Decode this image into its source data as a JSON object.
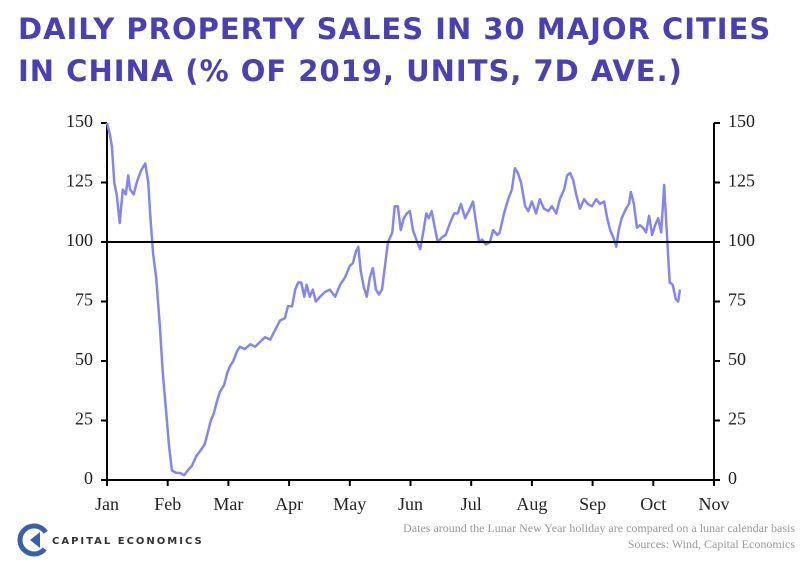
{
  "chart_data": {
    "type": "line",
    "title": "DAILY PROPERTY SALES IN 30 MAJOR CITIES IN CHINA (% OF 2019, UNITS, 7D AVE.)",
    "x": [
      0,
      0.05,
      0.08,
      0.12,
      0.16,
      0.21,
      0.26,
      0.31,
      0.35,
      0.38,
      0.44,
      0.49,
      0.56,
      0.63,
      0.68,
      0.71,
      0.76,
      0.81,
      0.87,
      0.92,
      0.97,
      1.02,
      1.07,
      1.14,
      1.2,
      1.27,
      1.33,
      1.4,
      1.47,
      1.53,
      1.61,
      1.66,
      1.71,
      1.76,
      1.81,
      1.86,
      1.93,
      1.98,
      2.03,
      2.08,
      2.14,
      2.19,
      2.27,
      2.36,
      2.44,
      2.52,
      2.6,
      2.69,
      2.77,
      2.85,
      2.93,
      2.98,
      3.05,
      3.1,
      3.15,
      3.2,
      3.25,
      3.29,
      3.34,
      3.39,
      3.44,
      3.51,
      3.59,
      3.67,
      3.76,
      3.84,
      3.92,
      4.0,
      4.05,
      4.1,
      4.14,
      4.18,
      4.23,
      4.28,
      4.33,
      4.38,
      4.43,
      4.48,
      4.53,
      4.58,
      4.63,
      4.7,
      4.74,
      4.79,
      4.84,
      4.89,
      4.94,
      4.99,
      5.04,
      5.11,
      5.16,
      5.21,
      5.26,
      5.3,
      5.35,
      5.4,
      5.45,
      5.52,
      5.58,
      5.65,
      5.72,
      5.78,
      5.83,
      5.9,
      5.96,
      6.03,
      6.08,
      6.13,
      6.18,
      6.24,
      6.31,
      6.36,
      6.43,
      6.47,
      6.54,
      6.61,
      6.67,
      6.72,
      6.77,
      6.82,
      6.89,
      6.94,
      7.0,
      7.07,
      7.13,
      7.2,
      7.27,
      7.33,
      7.4,
      7.46,
      7.53,
      7.58,
      7.63,
      7.68,
      7.73,
      7.79,
      7.86,
      7.92,
      7.99,
      8.06,
      8.12,
      8.19,
      8.24,
      8.29,
      8.34,
      8.39,
      8.43,
      8.48,
      8.55,
      8.6,
      8.63,
      8.68,
      8.73,
      8.78,
      8.83,
      8.88,
      8.93,
      8.98,
      9.03,
      9.08,
      9.13,
      9.18,
      9.21,
      9.24,
      9.27,
      9.32,
      9.37,
      9.41,
      9.44
    ],
    "values": [
      150,
      145,
      140,
      125,
      120,
      108,
      122,
      120,
      128,
      122,
      120,
      125,
      130,
      133,
      125,
      112,
      95,
      85,
      65,
      45,
      30,
      15,
      4,
      3,
      3,
      2,
      4,
      6,
      10,
      12,
      15,
      20,
      25,
      28,
      33,
      37,
      40,
      45,
      48,
      50,
      54,
      56,
      55,
      57,
      56,
      58,
      60,
      59,
      63,
      67,
      68,
      73,
      73,
      80,
      83,
      83,
      77,
      82,
      77,
      80,
      75,
      77,
      79,
      80,
      77,
      82,
      85,
      90,
      91,
      96,
      98,
      88,
      81,
      77,
      85,
      89,
      80,
      78,
      80,
      90,
      100,
      104,
      115,
      115,
      105,
      110,
      112,
      113,
      105,
      100,
      97,
      104,
      112,
      110,
      113,
      106,
      100,
      102,
      103,
      108,
      112,
      112,
      116,
      110,
      113,
      117,
      108,
      100,
      101,
      99,
      100,
      105,
      103,
      104,
      112,
      118,
      122,
      131,
      129,
      125,
      115,
      113,
      117,
      112,
      118,
      114,
      113,
      115,
      112,
      118,
      122,
      128,
      129,
      126,
      120,
      114,
      118,
      116,
      115,
      118,
      116,
      117,
      110,
      105,
      102,
      98,
      105,
      110,
      114,
      116,
      121,
      116,
      106,
      107,
      106,
      104,
      111,
      103,
      107,
      110,
      104,
      124,
      110,
      96,
      83,
      82,
      76,
      75,
      80
    ],
    "color": "#8585f0",
    "xlim": [
      0,
      10
    ],
    "xticks": [
      {
        "value": 0,
        "label": "Jan"
      },
      {
        "value": 1,
        "label": "Feb"
      },
      {
        "value": 2,
        "label": "Mar"
      },
      {
        "value": 3,
        "label": "Apr"
      },
      {
        "value": 4,
        "label": "May"
      },
      {
        "value": 5,
        "label": "Jun"
      },
      {
        "value": 6,
        "label": "Jul"
      },
      {
        "value": 7,
        "label": "Aug"
      },
      {
        "value": 8,
        "label": "Sep"
      },
      {
        "value": 9,
        "label": "Oct"
      },
      {
        "value": 10,
        "label": "Nov"
      }
    ],
    "ylim": [
      0,
      150
    ],
    "yticks": [
      0,
      25,
      50,
      75,
      100,
      125,
      150
    ],
    "y2lim": [
      0,
      150
    ],
    "y2ticks": [
      0,
      25,
      50,
      75,
      100,
      125,
      150
    ],
    "reference_line": 100,
    "note": "Dates around the Lunar New Year holiday are compared on a lunar calendar basis",
    "source": "Sources: Wind, Capital Economics",
    "logo": "CAPITAL ECONOMICS"
  }
}
